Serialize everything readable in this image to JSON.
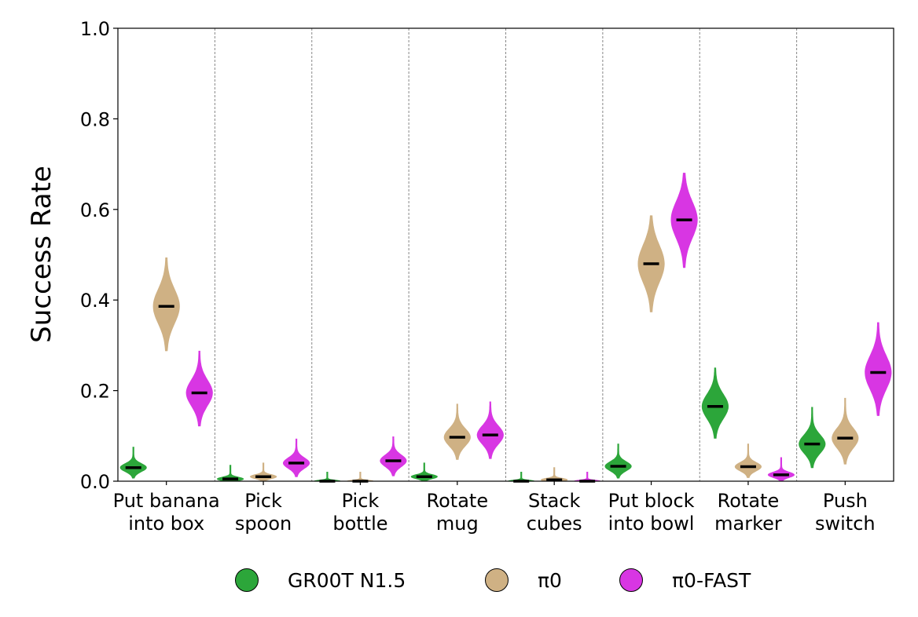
{
  "chart_data": {
    "type": "violin",
    "title": "",
    "xlabel": "",
    "ylabel": "Success Rate",
    "ylim": [
      0.0,
      1.0
    ],
    "yticks": [
      "0.0",
      "0.2",
      "0.4",
      "0.6",
      "0.8",
      "1.0"
    ],
    "categories": [
      [
        "Put banana",
        "into box"
      ],
      [
        "Pick",
        "spoon"
      ],
      [
        "Pick",
        "bottle"
      ],
      [
        "Rotate",
        "mug"
      ],
      [
        "Stack",
        "cubes"
      ],
      [
        "Put block",
        "into bowl"
      ],
      [
        "Rotate",
        "marker"
      ],
      [
        "Push",
        "switch"
      ]
    ],
    "series": [
      {
        "name": "GR00T N1.5",
        "color": "#2ca63a",
        "means": [
          0.03,
          0.005,
          0.0,
          0.01,
          0.0,
          0.033,
          0.165,
          0.082
        ],
        "ranges": [
          [
            0.007,
            0.075
          ],
          [
            0.0,
            0.035
          ],
          [
            0.0,
            0.02
          ],
          [
            0.0,
            0.04
          ],
          [
            0.0,
            0.02
          ],
          [
            0.007,
            0.082
          ],
          [
            0.095,
            0.25
          ],
          [
            0.03,
            0.163
          ]
        ]
      },
      {
        "name": "π0",
        "color": "#cfb184",
        "means": [
          0.386,
          0.01,
          0.0,
          0.097,
          0.003,
          0.48,
          0.032,
          0.095
        ],
        "ranges": [
          [
            0.288,
            0.493
          ],
          [
            0.0,
            0.04
          ],
          [
            0.0,
            0.02
          ],
          [
            0.048,
            0.17
          ],
          [
            0.0,
            0.03
          ],
          [
            0.374,
            0.586
          ],
          [
            0.008,
            0.082
          ],
          [
            0.038,
            0.183
          ]
        ]
      },
      {
        "name": "π0-FAST",
        "color": "#d836e3",
        "means": [
          0.195,
          0.04,
          0.045,
          0.102,
          0.0,
          0.577,
          0.014,
          0.24
        ],
        "ranges": [
          [
            0.122,
            0.287
          ],
          [
            0.01,
            0.093
          ],
          [
            0.012,
            0.098
          ],
          [
            0.05,
            0.175
          ],
          [
            0.0,
            0.02
          ],
          [
            0.472,
            0.68
          ],
          [
            0.0,
            0.052
          ],
          [
            0.145,
            0.35
          ]
        ]
      }
    ],
    "legend": {
      "location": "bottom-center",
      "labels": [
        "GR00T N1.5",
        "π0",
        "π0-FAST"
      ]
    }
  }
}
